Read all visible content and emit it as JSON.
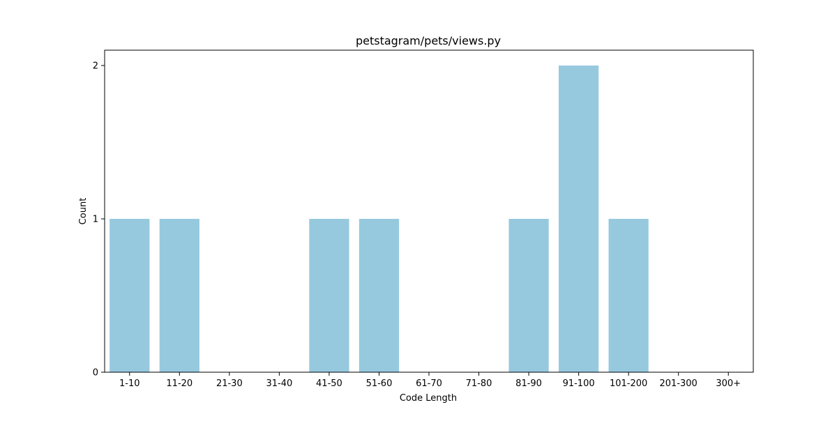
{
  "chart_data": {
    "type": "bar",
    "title": "petstagram/pets/views.py",
    "xlabel": "Code Length",
    "ylabel": "Count",
    "categories": [
      "1-10",
      "11-20",
      "21-30",
      "31-40",
      "41-50",
      "51-60",
      "61-70",
      "71-80",
      "81-90",
      "91-100",
      "101-200",
      "201-300",
      "300+"
    ],
    "values": [
      1,
      1,
      0,
      0,
      1,
      1,
      0,
      0,
      1,
      2,
      1,
      0,
      0
    ],
    "yticks": [
      0,
      1,
      2
    ],
    "ylim": [
      0,
      2.1
    ],
    "grid": false,
    "legend": "none",
    "colors": {
      "bar": "#96c9de",
      "axis": "#000000",
      "background": "#ffffff"
    }
  }
}
